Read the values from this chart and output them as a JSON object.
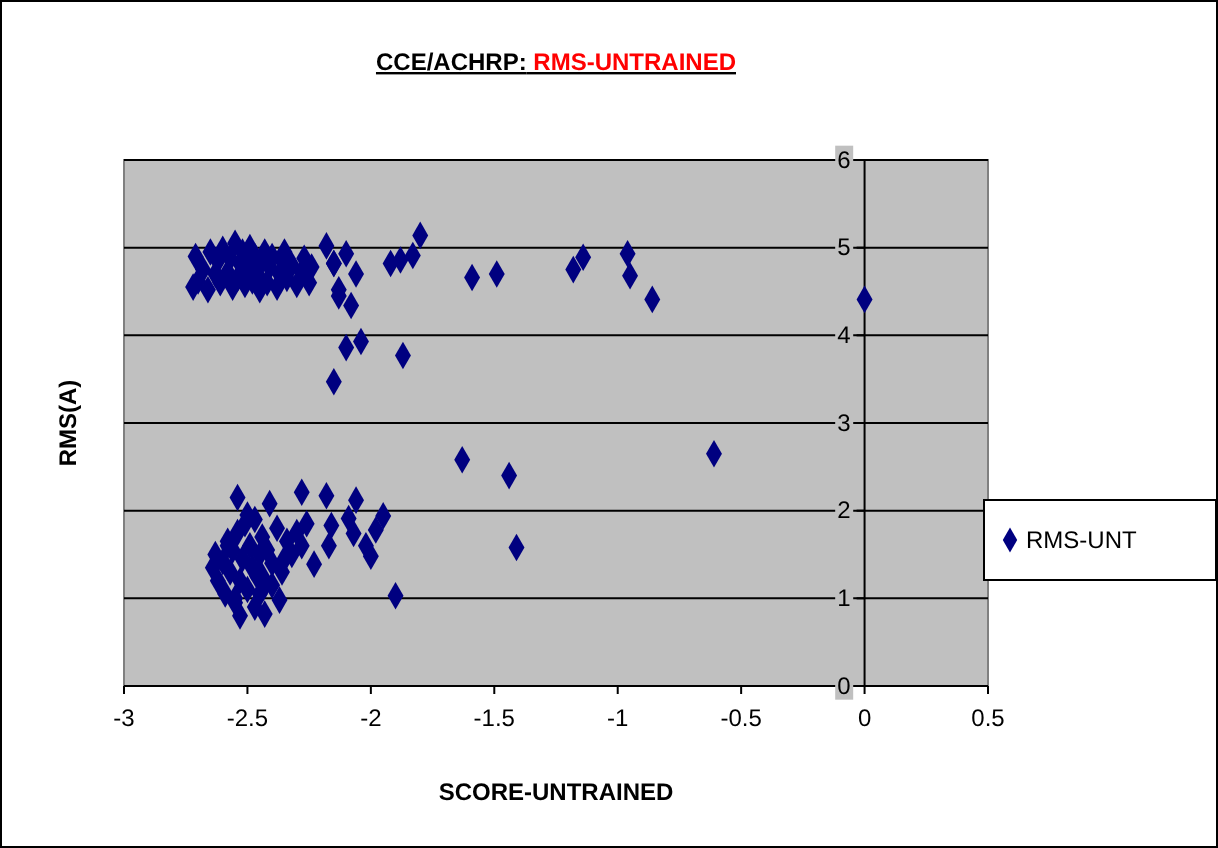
{
  "chart_data": {
    "type": "scatter",
    "title": "CCE/ACHRP:",
    "subtitle": "RMS-UNTRAINED",
    "xlabel": "SCORE-UNTRAINED",
    "ylabel": "RMS(A)",
    "xlim": [
      -3,
      0.5
    ],
    "xticks": [
      -3,
      -2.5,
      -2,
      -1.5,
      -1,
      -0.5,
      0,
      0.5
    ],
    "ylim": [
      0,
      6
    ],
    "yticks": [
      0,
      1,
      2,
      3,
      4,
      5,
      6
    ],
    "grid": "y",
    "legend": "right",
    "marker": "diamond",
    "series": [
      {
        "name": "RMS-UNT",
        "color": "#000080",
        "x": [
          -2.72,
          -2.71,
          -2.7,
          -2.68,
          -2.66,
          -2.65,
          -2.63,
          -2.62,
          -2.61,
          -2.6,
          -2.58,
          -2.57,
          -2.56,
          -2.55,
          -2.54,
          -2.53,
          -2.52,
          -2.51,
          -2.5,
          -2.49,
          -2.48,
          -2.47,
          -2.46,
          -2.45,
          -2.44,
          -2.43,
          -2.42,
          -2.41,
          -2.4,
          -2.38,
          -2.37,
          -2.36,
          -2.35,
          -2.34,
          -2.32,
          -2.3,
          -2.28,
          -2.27,
          -2.25,
          -2.24,
          -2.18,
          -2.15,
          -2.1,
          -2.15,
          -2.06,
          -2.13,
          -2.13,
          -2.08,
          -2.04,
          -2.1,
          -2.15,
          -1.87,
          -1.8,
          -1.92,
          -1.88,
          -1.83,
          -1.59,
          -1.49,
          -1.18,
          -1.14,
          -0.96,
          -0.95,
          -0.86,
          0,
          -0.61,
          -1.44,
          -1.41,
          -1.63,
          -1.9,
          -2.54,
          -1.95,
          -1.98,
          -2.0,
          -2.02,
          -2.06,
          -2.07,
          -2.09,
          -2.18,
          -2.28,
          -2.17,
          -2.16,
          -2.23,
          -2.41,
          -2.37,
          -2.53,
          -2.43,
          -2.64,
          -2.63,
          -2.62,
          -2.6,
          -2.59,
          -2.58,
          -2.57,
          -2.56,
          -2.55,
          -2.54,
          -2.53,
          -2.52,
          -2.51,
          -2.5,
          -2.49,
          -2.48,
          -2.47,
          -2.46,
          -2.45,
          -2.44,
          -2.43,
          -2.42,
          -2.4,
          -2.38,
          -2.36,
          -2.34,
          -2.32,
          -2.3,
          -2.28,
          -2.26,
          -2.5,
          -2.47,
          -2.45,
          -2.55,
          -2.58,
          -2.44,
          -2.4,
          -2.35
        ],
        "values": [
          4.55,
          4.9,
          4.62,
          4.75,
          4.52,
          4.95,
          4.7,
          4.85,
          4.6,
          4.98,
          4.72,
          4.88,
          4.55,
          5.05,
          4.65,
          4.82,
          4.95,
          4.58,
          4.75,
          5.0,
          4.62,
          4.9,
          4.7,
          4.52,
          4.85,
          4.95,
          4.6,
          4.78,
          4.9,
          4.55,
          4.7,
          4.85,
          4.95,
          4.65,
          4.8,
          4.58,
          4.72,
          4.88,
          4.6,
          4.78,
          5.02,
          4.82,
          4.93,
          4.82,
          4.7,
          4.52,
          4.45,
          4.34,
          3.93,
          3.86,
          3.47,
          3.77,
          5.14,
          4.82,
          4.86,
          4.91,
          4.66,
          4.7,
          4.75,
          4.89,
          4.93,
          4.68,
          4.41,
          4.41,
          2.65,
          2.4,
          1.58,
          2.58,
          1.03,
          2.15,
          1.94,
          1.78,
          1.48,
          1.6,
          2.12,
          1.74,
          1.91,
          2.17,
          2.21,
          1.6,
          1.83,
          1.39,
          2.08,
          0.98,
          0.8,
          0.82,
          1.35,
          1.5,
          1.2,
          1.42,
          1.05,
          1.65,
          1.3,
          1.55,
          0.95,
          1.75,
          1.2,
          1.45,
          1.85,
          1.1,
          1.6,
          1.35,
          1.9,
          1.25,
          1.5,
          1.7,
          1.15,
          1.55,
          1.4,
          1.8,
          1.3,
          1.65,
          1.5,
          1.75,
          1.6,
          1.85,
          1.95,
          0.9,
          1.05,
          1.0,
          1.6,
          1.25,
          1.15,
          1.45
        ]
      }
    ]
  }
}
